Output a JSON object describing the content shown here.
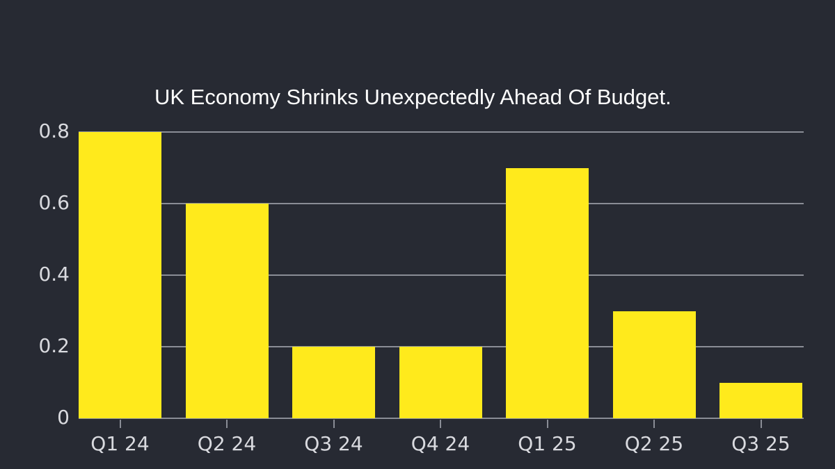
{
  "chart_data": {
    "type": "bar",
    "title": "UK Economy Shrinks Unexpectedly Ahead Of Budget.",
    "categories": [
      "Q1 24",
      "Q2 24",
      "Q3 24",
      "Q4 24",
      "Q1 25",
      "Q2 25",
      "Q3 25"
    ],
    "values": [
      0.8,
      0.6,
      0.2,
      0.2,
      0.7,
      0.3,
      0.1
    ],
    "xlabel": "",
    "ylabel": "",
    "ylim": [
      0,
      0.8
    ],
    "yticks": [
      "0",
      "0.2",
      "0.4",
      "0.6",
      "0.8"
    ],
    "grid": true,
    "legend": null,
    "colors": {
      "bar": "#ffea1c",
      "background": "#272a33",
      "grid": "#8a8d96",
      "text": "#d9dadf"
    }
  }
}
